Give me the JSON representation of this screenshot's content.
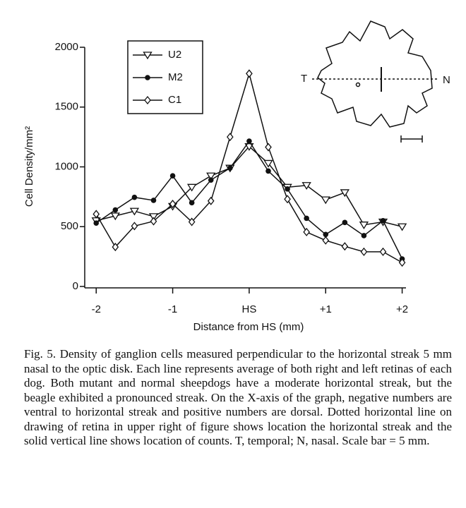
{
  "chart_data": {
    "type": "line",
    "ylabel": "Cell Density/mm²",
    "xlabel": "Distance from HS (mm)",
    "x": [
      -2,
      -1.75,
      -1.5,
      -1.25,
      -1,
      -0.75,
      -0.5,
      -0.25,
      0,
      0.25,
      0.5,
      0.75,
      1,
      1.25,
      1.5,
      1.75,
      2
    ],
    "series": [
      {
        "name": "U2",
        "color": "#111111",
        "marker": "triangle-down",
        "values": [
          550,
          590,
          630,
          585,
          670,
          830,
          925,
          990,
          1170,
          1030,
          830,
          845,
          725,
          785,
          515,
          540,
          500
        ]
      },
      {
        "name": "M2",
        "color": "#111111",
        "marker": "circle",
        "values": [
          530,
          640,
          745,
          720,
          925,
          700,
          890,
          990,
          1215,
          965,
          815,
          570,
          435,
          535,
          425,
          550,
          230
        ]
      },
      {
        "name": "C1",
        "color": "#111111",
        "marker": "diamond",
        "values": [
          605,
          330,
          505,
          545,
          690,
          540,
          715,
          1250,
          1780,
          1165,
          730,
          455,
          385,
          335,
          290,
          290,
          200
        ]
      }
    ],
    "xlim": [
      -2.15,
      2.05
    ],
    "ylim": [
      0,
      2000
    ],
    "xticks": [
      -2,
      -1,
      {
        "value": 0,
        "label": "HS"
      },
      {
        "value": 1,
        "label": "+1"
      },
      {
        "value": 2,
        "label": "+2"
      }
    ],
    "yticks": [
      0,
      500,
      1000,
      1500,
      2000
    ],
    "legend": "upper left",
    "inset_labels": [
      "T",
      "N"
    ]
  },
  "caption": "Fig. 5.  Density of ganglion cells measured perpendicular to the horizontal streak 5 mm nasal to the optic disk. Each line represents average of both right and left retinas of each dog. Both mutant and normal sheepdogs have a moderate horizontal streak, but the beagle exhibited a pronounced streak. On the X-axis of the graph, negative numbers are ventral to horizontal streak and positive numbers are dorsal. Dotted horizontal line on drawing of retina in upper right of figure shows location the horizontal streak and the solid vertical line shows location of counts. T, temporal; N, nasal. Scale bar = 5 mm."
}
